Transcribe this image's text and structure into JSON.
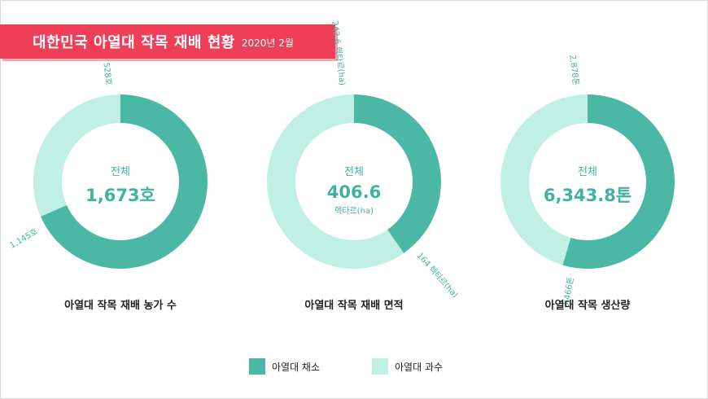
{
  "header": {
    "title": "대한민국 아열대 작목 재배 현황",
    "date": "2020년 2월"
  },
  "colors": {
    "vegetable": "#4bb8a6",
    "fruit": "#bff0e3",
    "text_accent": "#41b29f",
    "banner": "#ef3e58"
  },
  "legend": [
    {
      "label": "아열대 채소",
      "color": "#4bb8a6"
    },
    {
      "label": "아열대 과수",
      "color": "#bff0e3"
    }
  ],
  "chart_data": [
    {
      "type": "pie",
      "caption": "아열대 작목 재배 농가 수",
      "center_label": "전체",
      "center_value": "1,673호",
      "center_unit": "",
      "series": [
        {
          "category": "아열대 채소",
          "value": 1145,
          "label": "1,145호"
        },
        {
          "category": "아열대 과수",
          "value": 528,
          "label": "528호"
        }
      ]
    },
    {
      "type": "pie",
      "caption": "아열대 작목 재배 면적",
      "center_label": "전체",
      "center_value": "406.6",
      "center_unit": "헥타르(ha)",
      "series": [
        {
          "category": "아열대 채소",
          "value": 164,
          "label": "164 헥타르(ha)"
        },
        {
          "category": "아열대 과수",
          "value": 242.6,
          "label": "242.6 헥타르(ha)"
        }
      ]
    },
    {
      "type": "pie",
      "caption": "아열대 작목 생산량",
      "center_label": "전체",
      "center_value": "6,343.8톤",
      "center_unit": "",
      "series": [
        {
          "category": "아열대 채소",
          "value": 3466,
          "label": "3,466톤"
        },
        {
          "category": "아열대 과수",
          "value": 2878,
          "label": "2,878톤"
        }
      ]
    }
  ]
}
